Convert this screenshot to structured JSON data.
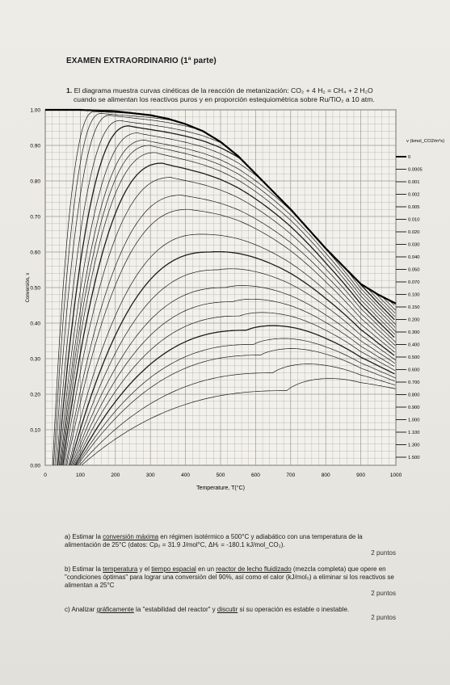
{
  "exam_title": "EXAMEN EXTRAORDINARIO",
  "exam_part": "(1ª parte)",
  "question": {
    "number": "1.",
    "line1": "El diagrama muestra curvas cinéticas de la reacción de metanización: CO₂ + 4 H₂ = CH₄ + 2 H₂O",
    "line2": "cuando se alimentan los reactivos puros y en proporción estequiométrica sobre Ru/TiO₂ a 10 atm."
  },
  "chart_data": {
    "type": "line",
    "title": "",
    "xlabel": "Temperature, T(°C)",
    "ylabel": "Conversión, x",
    "xlim": [
      0,
      1000
    ],
    "ylim": [
      0,
      1
    ],
    "x_ticks": [
      "0",
      "100",
      "200",
      "300",
      "400",
      "500",
      "600",
      "700",
      "800",
      "900",
      "1000"
    ],
    "y_ticks": [
      "0.00",
      "0.10",
      "0.20",
      "0.30",
      "0.40",
      "0.50",
      "0.60",
      "0.70",
      "0.80",
      "0.90",
      "1.00"
    ],
    "grid": true,
    "legend_title": "v (kmol_CO2/m³s)",
    "legend_placement": "right",
    "equilibrium": {
      "x": [
        0,
        100,
        200,
        300,
        350,
        400,
        450,
        500,
        550,
        600,
        650,
        700,
        750,
        800,
        850,
        900,
        950,
        1000
      ],
      "y": [
        1.0,
        1.0,
        0.996,
        0.985,
        0.975,
        0.96,
        0.94,
        0.91,
        0.87,
        0.82,
        0.77,
        0.72,
        0.665,
        0.61,
        0.56,
        0.51,
        0.48,
        0.455
      ]
    },
    "rate_levels": [
      {
        "label": "0",
        "peak_x": 1.0,
        "peak_t": 20
      },
      {
        "label": "0.0005",
        "peak_x": 0.995,
        "peak_t": 140
      },
      {
        "label": "0.001",
        "peak_x": 0.99,
        "peak_t": 160
      },
      {
        "label": "0.002",
        "peak_x": 0.985,
        "peak_t": 185
      },
      {
        "label": "0.005",
        "peak_x": 0.97,
        "peak_t": 215
      },
      {
        "label": "0.010",
        "peak_x": 0.955,
        "peak_t": 240
      },
      {
        "label": "0.020",
        "peak_x": 0.935,
        "peak_t": 265
      },
      {
        "label": "0.030",
        "peak_x": 0.915,
        "peak_t": 285
      },
      {
        "label": "0.040",
        "peak_x": 0.9,
        "peak_t": 300
      },
      {
        "label": "0.050",
        "peak_x": 0.88,
        "peak_t": 315
      },
      {
        "label": "0.070",
        "peak_x": 0.85,
        "peak_t": 335
      },
      {
        "label": "0.100",
        "peak_x": 0.81,
        "peak_t": 360
      },
      {
        "label": "0.150",
        "peak_x": 0.76,
        "peak_t": 390
      },
      {
        "label": "0.200",
        "peak_x": 0.72,
        "peak_t": 410
      },
      {
        "label": "0.300",
        "peak_x": 0.65,
        "peak_t": 445
      },
      {
        "label": "0.400",
        "peak_x": 0.6,
        "peak_t": 470
      },
      {
        "label": "0.500",
        "peak_x": 0.55,
        "peak_t": 495
      },
      {
        "label": "0.600",
        "peak_x": 0.5,
        "peak_t": 515
      },
      {
        "label": "0.700",
        "peak_x": 0.46,
        "peak_t": 535
      },
      {
        "label": "0.800",
        "peak_x": 0.42,
        "peak_t": 555
      },
      {
        "label": "0.900",
        "peak_x": 0.38,
        "peak_t": 575
      },
      {
        "label": "1.000",
        "peak_x": 0.34,
        "peak_t": 595
      },
      {
        "label": "1.100",
        "peak_x": 0.31,
        "peak_t": 615
      },
      {
        "label": "1.300",
        "peak_x": 0.26,
        "peak_t": 650
      },
      {
        "label": "1.500",
        "peak_x": 0.21,
        "peak_t": 690
      }
    ]
  },
  "tasks": [
    {
      "label": "a)",
      "text_before": "Estimar la ",
      "underlined": "conversión máxima",
      "text_after": " en régimen isotérmico a 500°C y adiabático con una temperatura de la alimentación de 25°C (datos: Cp₀ = 31.9 J/mol°C, ΔHᵣ = -180.1 kJ/mol_CO₂).",
      "points": "2 puntos"
    },
    {
      "label": "b)",
      "text_before": "Estimar la ",
      "underlined": "temperatura",
      "text_mid": " y el ",
      "underlined2": "tiempo espacial",
      "text_mid2": " en un ",
      "underlined3": "reactor de lecho fluidizado",
      "text_after": " (mezcla completa) que opere en \"condiciones óptimas\" para lograr una conversión del 90%, así como el calor (kJ/mol₀) a eliminar si los reactivos se alimentan a 25°C",
      "points": "2 puntos"
    },
    {
      "label": "c)",
      "text_before": "Analizar ",
      "underlined": "gráficamente",
      "text_mid": " la \"estabilidad del reactor\" y ",
      "underlined2": "discutir",
      "text_after": " si su operación es estable o inestable.",
      "points": "2 puntos"
    }
  ]
}
